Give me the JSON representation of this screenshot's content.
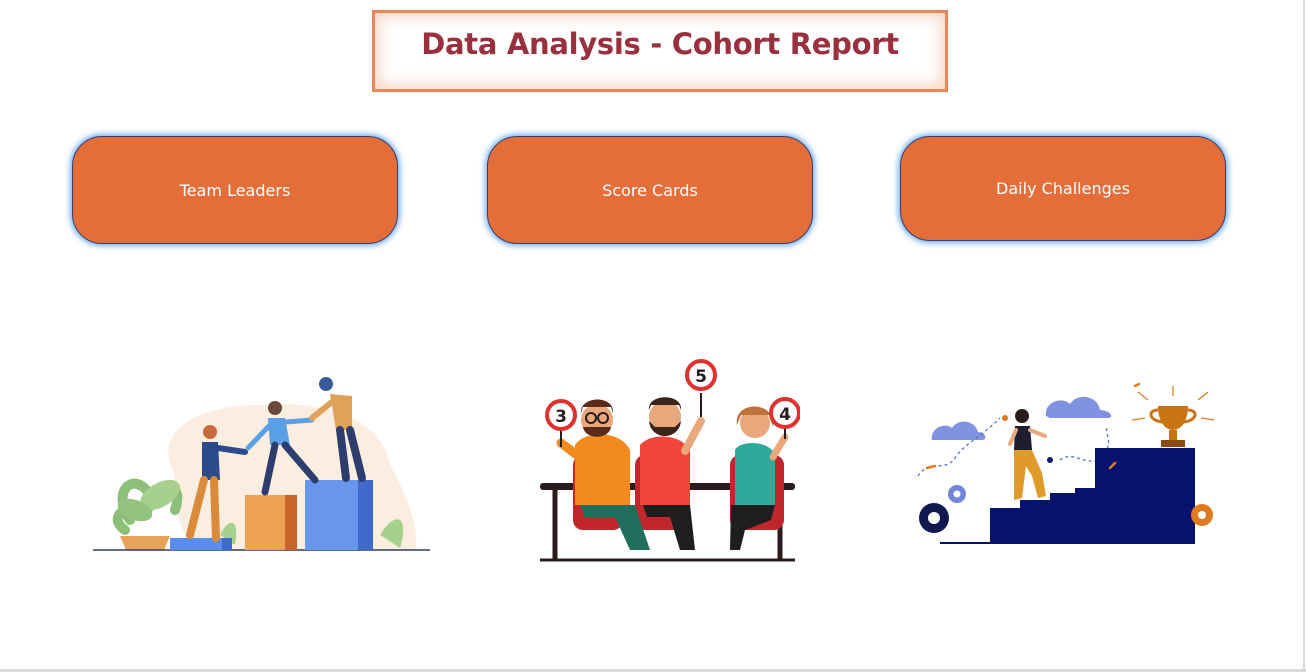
{
  "header": {
    "title": "Data Analysis - Cohort Report"
  },
  "nav": {
    "buttons": [
      {
        "label": "Team Leaders"
      },
      {
        "label": "Score Cards"
      },
      {
        "label": "Daily Challenges"
      }
    ]
  },
  "score_cards_illustration": {
    "signs": [
      "3",
      "5",
      "4"
    ]
  },
  "colors": {
    "title": "#98303d",
    "button_fill": "#e46e3a",
    "button_glow": "#4094eb",
    "title_border": "#e8865a"
  }
}
